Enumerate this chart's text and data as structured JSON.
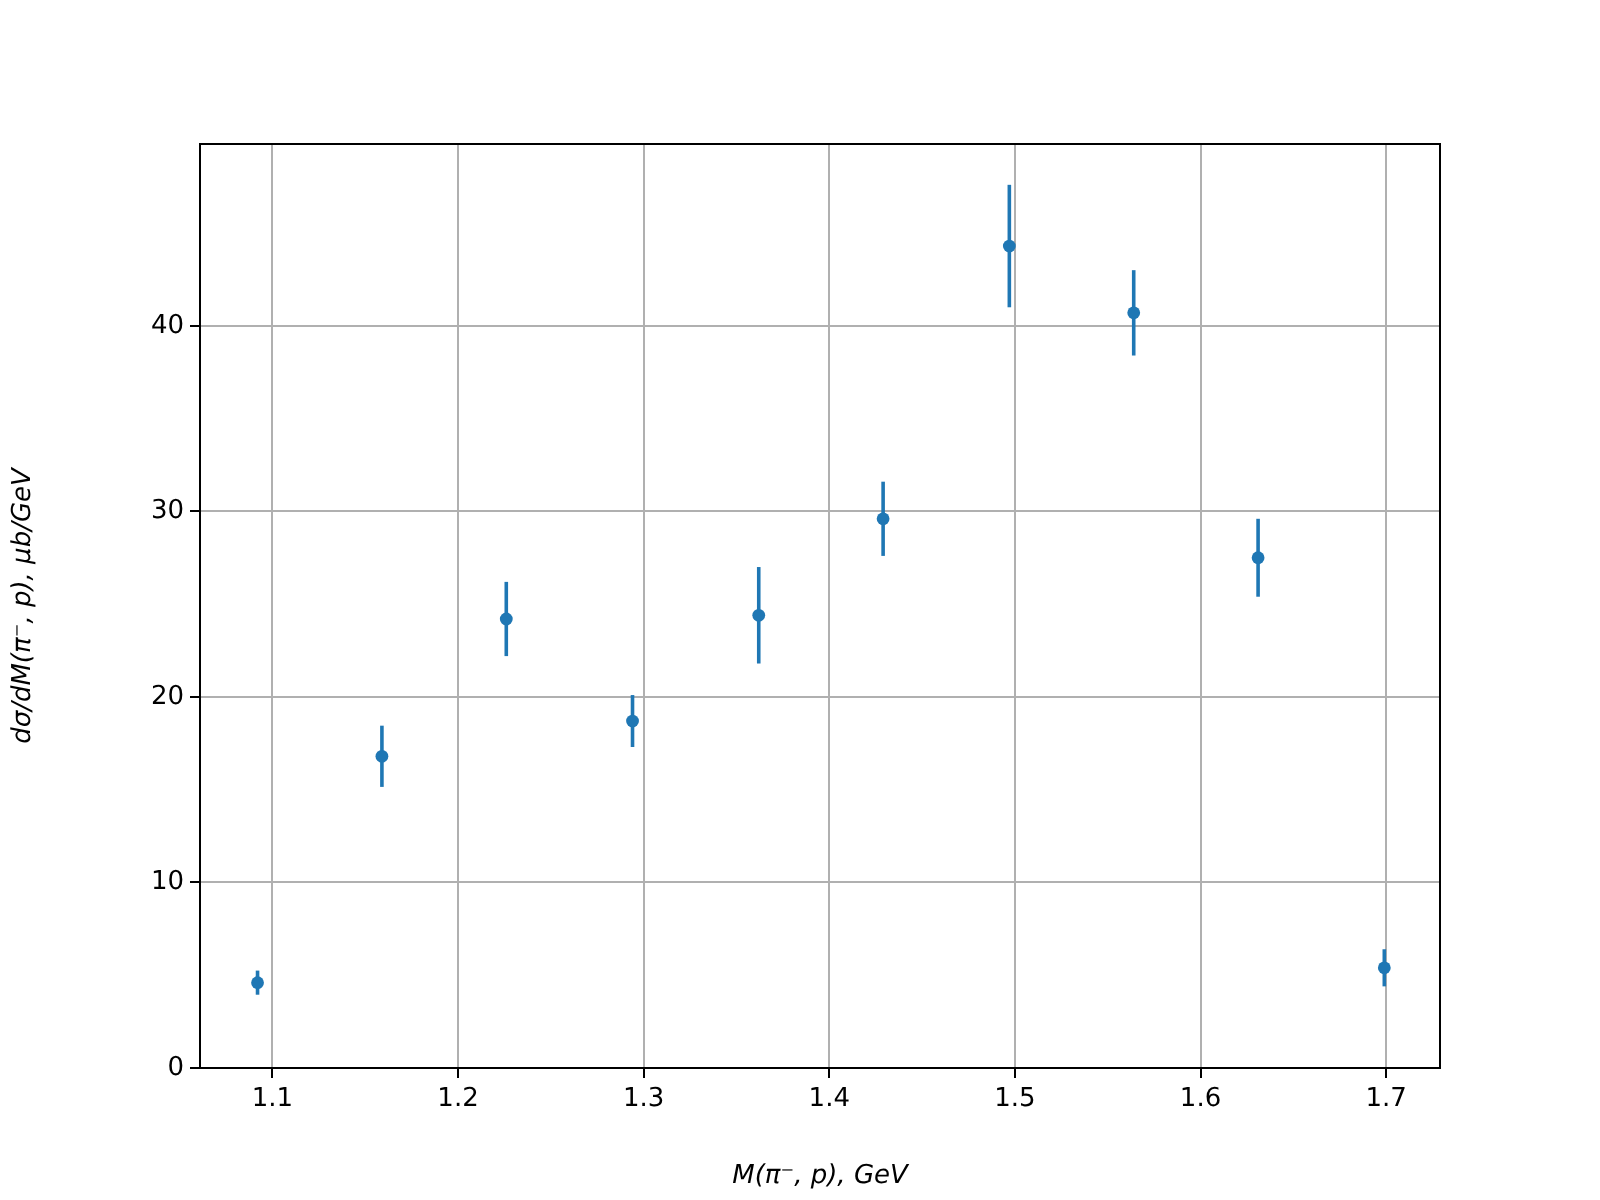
{
  "chart_data": {
    "type": "scatter",
    "xlabel": "M(π⁻, p), GeV",
    "ylabel": "dσ/dM(π⁻, p), μb/GeV",
    "x": [
      1.092,
      1.159,
      1.226,
      1.294,
      1.362,
      1.429,
      1.497,
      1.564,
      1.631,
      1.699
    ],
    "series": [
      {
        "color": "#1f77b4",
        "values": [
          4.6,
          16.8,
          24.2,
          18.7,
          24.4,
          29.6,
          44.3,
          40.7,
          27.5,
          5.4
        ],
        "errors": [
          0.65,
          1.65,
          2.0,
          1.4,
          2.6,
          2.0,
          3.3,
          2.3,
          2.1,
          1.0
        ]
      }
    ],
    "xlim": [
      1.061,
      1.729
    ],
    "xticks": [
      1.1,
      1.2,
      1.3,
      1.4,
      1.5,
      1.6,
      1.7
    ],
    "ylim": [
      0,
      49.8
    ],
    "yticks": [
      0,
      10,
      20,
      30,
      40
    ],
    "grid": true,
    "legend": false,
    "marker": "circle"
  }
}
